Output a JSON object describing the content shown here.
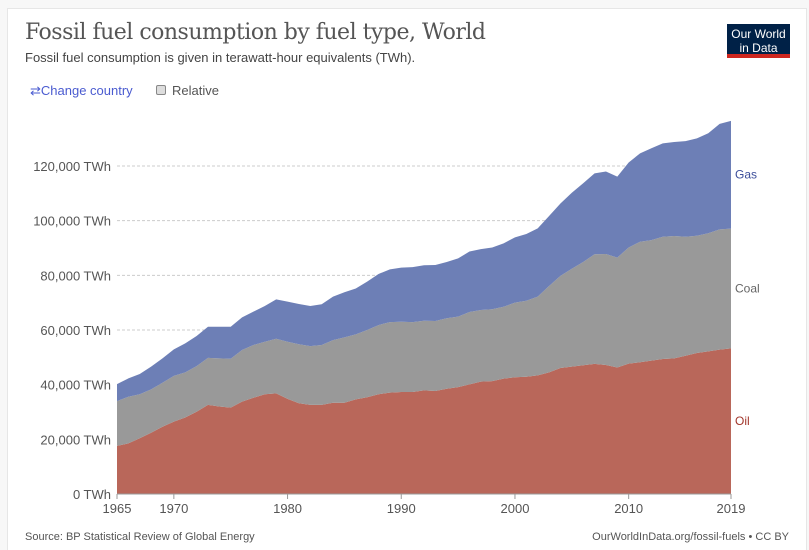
{
  "header": {
    "title": "Fossil fuel consumption by fuel type, World",
    "subtitle": "Fossil fuel consumption is given in terawatt-hour equivalents (TWh).",
    "logo": "Our World in Data"
  },
  "controls": {
    "change_country": "Change country",
    "change_icon": "swap-arrows-icon",
    "relative": "Relative",
    "relative_checked": false
  },
  "footer": {
    "source": "Source: BP Statistical Review of Global Energy",
    "link": "OurWorldInData.org/fossil-fuels • CC BY"
  },
  "chart_data": {
    "type": "area",
    "stacked": true,
    "title": "",
    "xlabel": "",
    "ylabel": "",
    "grid": "horizontal dashed",
    "legend": "right (inline labels)",
    "xlim": [
      1965,
      2019
    ],
    "ylim": [
      0,
      136500
    ],
    "x_ticks": [
      "1965",
      "1970",
      "1980",
      "1990",
      "2000",
      "2010",
      "2019"
    ],
    "y_ticks": [
      "0 TWh",
      "20,000 TWh",
      "40,000 TWh",
      "60,000 TWh",
      "80,000 TWh",
      "100,000 TWh",
      "120,000 TWh"
    ],
    "x": [
      1965,
      1966,
      1967,
      1968,
      1969,
      1970,
      1971,
      1972,
      1973,
      1974,
      1975,
      1976,
      1977,
      1978,
      1979,
      1980,
      1981,
      1982,
      1983,
      1984,
      1985,
      1986,
      1987,
      1988,
      1989,
      1990,
      1991,
      1992,
      1993,
      1994,
      1995,
      1996,
      1997,
      1998,
      1999,
      2000,
      2001,
      2002,
      2003,
      2004,
      2005,
      2006,
      2007,
      2008,
      2009,
      2010,
      2011,
      2012,
      2013,
      2014,
      2015,
      2016,
      2017,
      2018,
      2019
    ],
    "series": [
      {
        "name": "Oil",
        "color": "#b9675a",
        "label_color": "#a2352a",
        "values": [
          17600,
          18500,
          20400,
          22400,
          24600,
          26500,
          28000,
          30100,
          32600,
          32000,
          31600,
          33800,
          35200,
          36500,
          36800,
          34800,
          33200,
          32600,
          32600,
          33400,
          33400,
          34600,
          35400,
          36500,
          37100,
          37300,
          37300,
          37900,
          37700,
          38500,
          39100,
          40100,
          41100,
          41300,
          42200,
          42700,
          42900,
          43400,
          44500,
          46100,
          46600,
          47100,
          47600,
          47200,
          46300,
          47700,
          48200,
          48800,
          49400,
          49600,
          50600,
          51600,
          52200,
          52800,
          53300
        ]
      },
      {
        "name": "Coal",
        "color": "#999999",
        "label_color": "#666666",
        "values": [
          16400,
          17100,
          16100,
          15900,
          16100,
          16700,
          16500,
          16700,
          17200,
          17600,
          17900,
          18900,
          19300,
          19200,
          20000,
          20900,
          21600,
          21500,
          21900,
          22900,
          23900,
          23800,
          24600,
          25300,
          25800,
          25700,
          25600,
          25500,
          25600,
          25800,
          25800,
          26500,
          26200,
          26300,
          26300,
          27300,
          27800,
          28800,
          31600,
          33700,
          35800,
          37800,
          40100,
          40600,
          40200,
          42500,
          44100,
          44100,
          44700,
          44800,
          43500,
          42900,
          43200,
          44000,
          43800
        ]
      },
      {
        "name": "Gas",
        "color": "#6d7fb6",
        "label_color": "#3c4e9a",
        "values": [
          6200,
          6700,
          7400,
          8300,
          8900,
          9700,
          10600,
          11000,
          11400,
          11600,
          11700,
          11900,
          12200,
          13100,
          14400,
          14700,
          14700,
          14700,
          14900,
          15900,
          16500,
          16800,
          17700,
          18700,
          19300,
          19800,
          20100,
          20300,
          20500,
          20600,
          21300,
          22100,
          22300,
          22600,
          23200,
          23900,
          24400,
          25000,
          25600,
          26500,
          27800,
          28800,
          29600,
          30200,
          29600,
          31100,
          32300,
          33600,
          34200,
          34400,
          35000,
          35600,
          36600,
          38600,
          39400
        ]
      }
    ]
  }
}
